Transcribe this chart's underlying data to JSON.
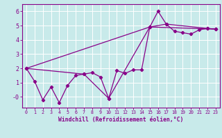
{
  "xlabel": "Windchill (Refroidissement éolien,°C)",
  "bg_color": "#c8eaea",
  "line_color": "#880088",
  "grid_color": "#ffffff",
  "xlim": [
    -0.5,
    23.5
  ],
  "ylim": [
    -0.75,
    6.5
  ],
  "xticks": [
    0,
    1,
    2,
    3,
    4,
    5,
    6,
    7,
    8,
    9,
    10,
    11,
    12,
    13,
    14,
    15,
    16,
    17,
    18,
    19,
    20,
    21,
    22,
    23
  ],
  "yticks": [
    0,
    1,
    2,
    3,
    4,
    5,
    6
  ],
  "ytick_labels": [
    "-0",
    "1",
    "2",
    "3",
    "4",
    "5",
    "6"
  ],
  "series1_x": [
    0,
    1,
    2,
    3,
    4,
    5,
    6,
    7,
    8,
    9,
    10,
    11,
    12,
    13,
    14,
    15,
    16,
    17,
    18,
    19,
    20,
    21,
    22,
    23
  ],
  "series1_y": [
    2.0,
    1.1,
    -0.2,
    0.7,
    -0.4,
    0.8,
    1.5,
    1.6,
    1.7,
    1.4,
    -0.1,
    1.85,
    1.65,
    1.9,
    1.9,
    4.9,
    6.0,
    5.1,
    4.6,
    4.5,
    4.4,
    4.7,
    4.8,
    4.75
  ],
  "series2_x": [
    0,
    7,
    10,
    15,
    17,
    22,
    23
  ],
  "series2_y": [
    2.0,
    1.6,
    -0.1,
    4.9,
    5.1,
    4.8,
    4.75
  ],
  "series3_x": [
    0,
    15,
    23
  ],
  "series3_y": [
    2.0,
    4.9,
    4.75
  ],
  "xlabel_fontsize": 5.8,
  "xtick_fontsize": 4.8,
  "ytick_fontsize": 6.0
}
